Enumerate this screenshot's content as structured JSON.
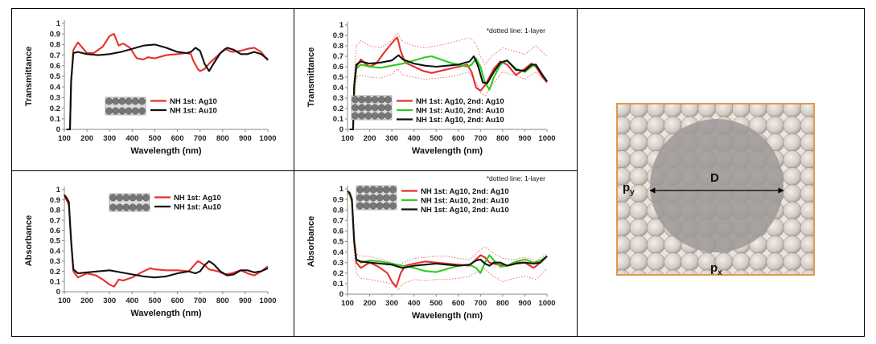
{
  "colors": {
    "red": "#e8302a",
    "black": "#111111",
    "green": "#2ecc1d",
    "dotted_red": "#e86060",
    "frame_orange": "#e09a4e",
    "hole_gray": "#9e9a97",
    "sphere_tan": "#d8d0c8"
  },
  "diagram": {
    "label_d": "D",
    "label_py": "p",
    "label_py_sub": "y",
    "label_px": "p",
    "label_px_sub": "x"
  },
  "chart_data": [
    {
      "id": "tl",
      "type": "line",
      "ylabel": "Transmittance",
      "xlabel": "Wavelength (nm)",
      "xlim": [
        100,
        1000
      ],
      "ylim": [
        0,
        1
      ],
      "xticks": [
        "100",
        "200",
        "300",
        "400",
        "500",
        "600",
        "700",
        "800",
        "900",
        "1000"
      ],
      "yticks": [
        "0",
        "0.1",
        "0.2",
        "0.3",
        "0.4",
        "0.5",
        "0.6",
        "0.7",
        "0.8",
        "0.9",
        "1"
      ],
      "note": "",
      "legend": [
        "NH 1st: Ag10",
        "NH 1st: Au10"
      ],
      "series": [
        {
          "name": "NH 1st: Ag10",
          "color": "red",
          "dashed": false,
          "x": [
            110,
            125,
            130,
            140,
            160,
            180,
            200,
            230,
            270,
            300,
            320,
            340,
            360,
            390,
            420,
            450,
            470,
            500,
            550,
            600,
            640,
            660,
            670,
            690,
            700,
            720,
            740,
            780,
            810,
            840,
            880,
            910,
            940,
            970,
            1000
          ],
          "y": [
            0,
            0,
            0.45,
            0.75,
            0.82,
            0.77,
            0.72,
            0.72,
            0.78,
            0.88,
            0.9,
            0.79,
            0.81,
            0.77,
            0.67,
            0.66,
            0.68,
            0.67,
            0.7,
            0.71,
            0.72,
            0.71,
            0.65,
            0.57,
            0.55,
            0.57,
            0.62,
            0.7,
            0.76,
            0.73,
            0.74,
            0.76,
            0.77,
            0.73,
            0.65
          ]
        },
        {
          "name": "NH 1st: Au10",
          "color": "black",
          "dashed": false,
          "x": [
            110,
            125,
            130,
            140,
            160,
            180,
            200,
            250,
            300,
            350,
            400,
            450,
            500,
            550,
            600,
            640,
            660,
            680,
            700,
            720,
            740,
            760,
            790,
            820,
            850,
            880,
            910,
            940,
            970,
            1000
          ],
          "y": [
            0,
            0,
            0.45,
            0.72,
            0.73,
            0.72,
            0.71,
            0.7,
            0.71,
            0.73,
            0.76,
            0.79,
            0.8,
            0.77,
            0.73,
            0.72,
            0.73,
            0.77,
            0.74,
            0.62,
            0.55,
            0.62,
            0.72,
            0.77,
            0.75,
            0.71,
            0.71,
            0.73,
            0.71,
            0.66
          ]
        }
      ]
    },
    {
      "id": "tm",
      "type": "line",
      "ylabel": "Transmittance",
      "xlabel": "Wavelength (nm)",
      "xlim": [
        100,
        1000
      ],
      "ylim": [
        0,
        1
      ],
      "xticks": [
        "100",
        "200",
        "300",
        "400",
        "500",
        "600",
        "700",
        "800",
        "900",
        "1000"
      ],
      "yticks": [
        "0",
        "0.1",
        "0.2",
        "0.3",
        "0.4",
        "0.5",
        "0.6",
        "0.7",
        "0.8",
        "0.9",
        "1"
      ],
      "note": "*dotted line: 1-layer",
      "legend": [
        "NH 1st: Ag10, 2nd: Ag10",
        "NH 1st: Au10, 2nd: Au10",
        "NH 1st: Ag10, 2nd: Au10"
      ],
      "series": [
        {
          "name": "NH 1st: Ag10, 2nd: Ag10",
          "color": "red",
          "dashed": false,
          "x": [
            110,
            125,
            130,
            140,
            160,
            180,
            200,
            230,
            260,
            290,
            310,
            325,
            340,
            360,
            400,
            440,
            480,
            520,
            560,
            600,
            640,
            660,
            680,
            700,
            720,
            740,
            760,
            790,
            820,
            860,
            900,
            930,
            950,
            980,
            1000
          ],
          "y": [
            0,
            0,
            0.4,
            0.6,
            0.67,
            0.63,
            0.6,
            0.63,
            0.72,
            0.8,
            0.85,
            0.88,
            0.75,
            0.64,
            0.6,
            0.56,
            0.54,
            0.56,
            0.58,
            0.6,
            0.62,
            0.55,
            0.4,
            0.37,
            0.42,
            0.5,
            0.58,
            0.65,
            0.62,
            0.52,
            0.58,
            0.63,
            0.6,
            0.5,
            0.45
          ]
        },
        {
          "name": "NH 1st: Au10, 2nd: Au10",
          "color": "green",
          "dashed": false,
          "x": [
            110,
            125,
            130,
            140,
            160,
            200,
            250,
            300,
            350,
            400,
            450,
            480,
            520,
            560,
            600,
            640,
            660,
            680,
            700,
            720,
            740,
            760,
            790,
            820,
            860,
            900,
            930,
            950,
            980,
            1000
          ],
          "y": [
            0,
            0,
            0.4,
            0.58,
            0.62,
            0.6,
            0.59,
            0.61,
            0.63,
            0.66,
            0.69,
            0.7,
            0.67,
            0.64,
            0.62,
            0.6,
            0.62,
            0.68,
            0.6,
            0.45,
            0.38,
            0.5,
            0.62,
            0.66,
            0.58,
            0.55,
            0.6,
            0.62,
            0.52,
            0.46
          ]
        },
        {
          "name": "NH 1st: Ag10, 2nd: Au10",
          "color": "black",
          "dashed": false,
          "x": [
            110,
            125,
            130,
            140,
            160,
            200,
            250,
            300,
            330,
            350,
            400,
            450,
            500,
            550,
            600,
            650,
            670,
            690,
            710,
            730,
            760,
            790,
            820,
            860,
            900,
            930,
            950,
            980,
            1000
          ],
          "y": [
            0,
            0,
            0.42,
            0.62,
            0.65,
            0.63,
            0.64,
            0.66,
            0.71,
            0.67,
            0.63,
            0.61,
            0.6,
            0.61,
            0.62,
            0.65,
            0.7,
            0.6,
            0.45,
            0.44,
            0.55,
            0.64,
            0.66,
            0.57,
            0.56,
            0.62,
            0.62,
            0.52,
            0.46
          ]
        },
        {
          "name": "",
          "color": "dotted_red",
          "dashed": true,
          "x": [
            110,
            125,
            130,
            140,
            160,
            200,
            250,
            300,
            325,
            350,
            400,
            450,
            500,
            550,
            600,
            650,
            680,
            700,
            720,
            750,
            800,
            850,
            900,
            950,
            1000
          ],
          "y": [
            0,
            0,
            0.5,
            0.8,
            0.85,
            0.8,
            0.78,
            0.85,
            0.92,
            0.84,
            0.8,
            0.78,
            0.8,
            0.82,
            0.85,
            0.88,
            0.82,
            0.7,
            0.62,
            0.7,
            0.78,
            0.75,
            0.72,
            0.8,
            0.7
          ]
        },
        {
          "name": "",
          "color": "dotted_red",
          "dashed": true,
          "x": [
            110,
            125,
            130,
            140,
            160,
            200,
            250,
            300,
            325,
            350,
            400,
            450,
            500,
            550,
            600,
            650,
            680,
            700,
            720,
            750,
            800,
            850,
            900,
            950,
            1000
          ],
          "y": [
            0,
            0,
            0.3,
            0.5,
            0.52,
            0.5,
            0.49,
            0.53,
            0.58,
            0.52,
            0.5,
            0.48,
            0.49,
            0.5,
            0.52,
            0.55,
            0.45,
            0.35,
            0.32,
            0.42,
            0.55,
            0.52,
            0.48,
            0.55,
            0.45
          ]
        }
      ]
    },
    {
      "id": "bl",
      "type": "line",
      "ylabel": "Absorbance",
      "xlabel": "Wavelength (nm)",
      "xlim": [
        100,
        1000
      ],
      "ylim": [
        0,
        1
      ],
      "xticks": [
        "100",
        "200",
        "300",
        "400",
        "500",
        "600",
        "700",
        "800",
        "900",
        "1000"
      ],
      "yticks": [
        "0",
        "0.1",
        "0.2",
        "0.3",
        "0.4",
        "0.5",
        "0.6",
        "0.7",
        "0.8",
        "0.9",
        "1"
      ],
      "note": "",
      "legend": [
        "NH 1st: Ag10",
        "NH 1st: Au10"
      ],
      "series": [
        {
          "name": "NH 1st: Ag10",
          "color": "red",
          "dashed": false,
          "x": [
            100,
            110,
            120,
            130,
            140,
            160,
            200,
            240,
            270,
            300,
            320,
            340,
            360,
            400,
            450,
            480,
            500,
            550,
            600,
            650,
            670,
            690,
            700,
            720,
            740,
            780,
            810,
            840,
            880,
            910,
            940,
            970,
            1000
          ],
          "y": [
            0.93,
            0.9,
            0.85,
            0.5,
            0.2,
            0.14,
            0.18,
            0.16,
            0.12,
            0.07,
            0.05,
            0.12,
            0.11,
            0.14,
            0.2,
            0.23,
            0.22,
            0.21,
            0.21,
            0.2,
            0.25,
            0.3,
            0.29,
            0.26,
            0.22,
            0.2,
            0.17,
            0.18,
            0.21,
            0.18,
            0.16,
            0.2,
            0.25
          ]
        },
        {
          "name": "NH 1st: Au10",
          "color": "black",
          "dashed": false,
          "x": [
            100,
            110,
            120,
            130,
            140,
            160,
            200,
            250,
            300,
            350,
            400,
            450,
            500,
            550,
            600,
            650,
            680,
            700,
            720,
            740,
            760,
            790,
            820,
            850,
            880,
            910,
            940,
            970,
            1000
          ],
          "y": [
            0.95,
            0.92,
            0.88,
            0.5,
            0.22,
            0.18,
            0.19,
            0.2,
            0.21,
            0.19,
            0.17,
            0.15,
            0.14,
            0.15,
            0.18,
            0.2,
            0.18,
            0.2,
            0.26,
            0.3,
            0.27,
            0.2,
            0.16,
            0.17,
            0.21,
            0.21,
            0.19,
            0.2,
            0.23
          ]
        }
      ]
    },
    {
      "id": "bm",
      "type": "line",
      "ylabel": "Absorbance",
      "xlabel": "Wavelength (nm)",
      "xlim": [
        100,
        1000
      ],
      "ylim": [
        0,
        1
      ],
      "xticks": [
        "100",
        "200",
        "300",
        "400",
        "500",
        "600",
        "700",
        "800",
        "900",
        "1000"
      ],
      "yticks": [
        "0",
        "0.1",
        "0.2",
        "0.3",
        "0.4",
        "0.5",
        "0.6",
        "0.7",
        "0.8",
        "0.9",
        "1"
      ],
      "note": "*dotted line: 1-layer",
      "legend": [
        "NH 1st: Ag10, 2nd: Ag10",
        "NH 1st: Au10, 2nd: Au10",
        "NH 1st: Ag10, 2nd: Au10"
      ],
      "series": [
        {
          "name": "NH 1st: Ag10, 2nd: Ag10",
          "color": "red",
          "dashed": false,
          "x": [
            100,
            110,
            120,
            130,
            140,
            160,
            200,
            240,
            280,
            300,
            320,
            340,
            360,
            400,
            450,
            500,
            550,
            600,
            650,
            680,
            700,
            720,
            740,
            780,
            820,
            860,
            900,
            940,
            970,
            1000
          ],
          "y": [
            0.97,
            0.95,
            0.88,
            0.5,
            0.3,
            0.25,
            0.3,
            0.26,
            0.2,
            0.12,
            0.07,
            0.2,
            0.27,
            0.29,
            0.31,
            0.3,
            0.29,
            0.28,
            0.27,
            0.33,
            0.37,
            0.35,
            0.3,
            0.28,
            0.27,
            0.3,
            0.3,
            0.25,
            0.3,
            0.36
          ]
        },
        {
          "name": "NH 1st: Au10, 2nd: Au10",
          "color": "green",
          "dashed": false,
          "x": [
            100,
            110,
            120,
            130,
            140,
            160,
            200,
            250,
            300,
            350,
            400,
            450,
            500,
            550,
            600,
            650,
            680,
            700,
            720,
            740,
            760,
            790,
            820,
            860,
            900,
            940,
            970,
            1000
          ],
          "y": [
            0.97,
            0.95,
            0.88,
            0.5,
            0.33,
            0.3,
            0.32,
            0.31,
            0.29,
            0.27,
            0.25,
            0.22,
            0.21,
            0.24,
            0.27,
            0.28,
            0.25,
            0.2,
            0.3,
            0.37,
            0.32,
            0.26,
            0.27,
            0.31,
            0.33,
            0.3,
            0.32,
            0.36
          ]
        },
        {
          "name": "NH 1st: Ag10, 2nd: Au10",
          "color": "black",
          "dashed": false,
          "x": [
            100,
            110,
            120,
            130,
            140,
            160,
            200,
            250,
            300,
            330,
            350,
            400,
            450,
            500,
            550,
            600,
            650,
            680,
            700,
            720,
            740,
            760,
            790,
            820,
            860,
            900,
            940,
            970,
            1000
          ],
          "y": [
            0.98,
            0.96,
            0.9,
            0.5,
            0.33,
            0.31,
            0.3,
            0.29,
            0.28,
            0.26,
            0.25,
            0.27,
            0.28,
            0.29,
            0.28,
            0.27,
            0.28,
            0.32,
            0.33,
            0.29,
            0.27,
            0.3,
            0.3,
            0.27,
            0.29,
            0.3,
            0.29,
            0.3,
            0.36
          ]
        },
        {
          "name": "",
          "color": "dotted_red",
          "dashed": true,
          "x": [
            100,
            110,
            120,
            130,
            140,
            160,
            200,
            250,
            300,
            330,
            350,
            400,
            450,
            500,
            550,
            600,
            650,
            700,
            720,
            750,
            800,
            850,
            900,
            950,
            1000
          ],
          "y": [
            0.95,
            0.93,
            0.86,
            0.55,
            0.38,
            0.36,
            0.36,
            0.33,
            0.3,
            0.25,
            0.3,
            0.34,
            0.35,
            0.36,
            0.36,
            0.34,
            0.33,
            0.42,
            0.45,
            0.4,
            0.34,
            0.33,
            0.35,
            0.32,
            0.38
          ]
        },
        {
          "name": "",
          "color": "dotted_red",
          "dashed": true,
          "x": [
            100,
            110,
            120,
            130,
            140,
            160,
            200,
            250,
            300,
            330,
            350,
            400,
            450,
            500,
            550,
            600,
            650,
            700,
            720,
            750,
            800,
            850,
            900,
            950,
            1000
          ],
          "y": [
            0.95,
            0.93,
            0.86,
            0.4,
            0.2,
            0.15,
            0.14,
            0.12,
            0.1,
            0.04,
            0.1,
            0.14,
            0.13,
            0.14,
            0.14,
            0.15,
            0.17,
            0.23,
            0.24,
            0.18,
            0.12,
            0.15,
            0.17,
            0.14,
            0.24
          ]
        }
      ]
    }
  ]
}
